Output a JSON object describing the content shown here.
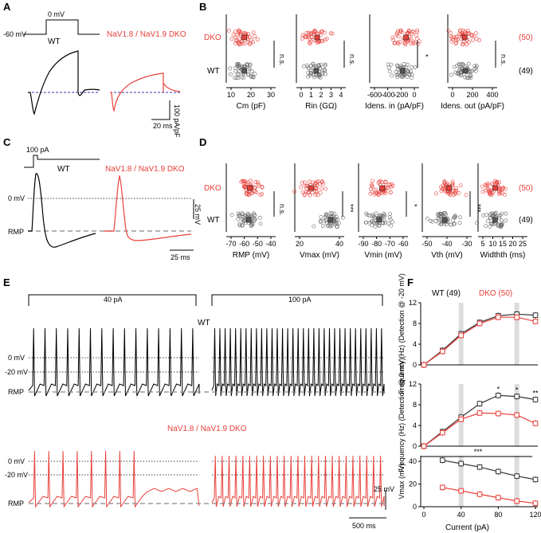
{
  "panels": {
    "A": {
      "label": "A",
      "protocol": {
        "hold": "-60 mV",
        "step": "0 mV"
      },
      "wt_label": "WT",
      "dko_label": "NaV1.8 / NaV1.9 DKO",
      "scale_y": "100 pA/pF",
      "scale_x": "20 ms"
    },
    "B": {
      "label": "B",
      "group_dko": "DKO",
      "group_wt": "WT",
      "n_dko": "(50)",
      "n_wt": "(49)",
      "subplots": [
        {
          "xlabel": "Cm (pF)",
          "ticks": [
            "10",
            "20",
            "30"
          ],
          "sig": "n.s.",
          "wt_mean": 15,
          "dko_mean": 15
        },
        {
          "xlabel": "Rin (GΩ)",
          "ticks": [
            "0",
            "1",
            "2",
            "3",
            "4"
          ],
          "sig": "n.s.",
          "wt_mean": 1.5,
          "dko_mean": 1.6
        },
        {
          "xlabel": "Idens. in (pA/pF)",
          "ticks": [
            "-600",
            "-400",
            "-200",
            "0"
          ],
          "sig": "*",
          "wt_mean": -180,
          "dko_mean": -120
        },
        {
          "xlabel": "Idens. out (pA/pF)",
          "ticks": [
            "0",
            "200",
            "400"
          ],
          "sig": "n.s.",
          "wt_mean": 120,
          "dko_mean": 110
        }
      ]
    },
    "C": {
      "label": "C",
      "stim": "100 pA",
      "wt_label": "WT",
      "dko_label": "NaV1.8 / NaV1.9 DKO",
      "zero_label": "0 mV",
      "rmp_label": "RMP",
      "scale_y": "25 mV",
      "scale_x": "25 ms"
    },
    "D": {
      "label": "D",
      "group_dko": "DKO",
      "group_wt": "WT",
      "n_dko": "(50)",
      "n_wt": "(49)",
      "subplots": [
        {
          "xlabel": "RMP (mV)",
          "ticks": [
            "-70",
            "-60",
            "-50",
            "-40"
          ],
          "sig": "n.s.",
          "wt_mean": -57,
          "dko_mean": -56
        },
        {
          "xlabel": "Vmax (mV)",
          "ticks": [
            "20",
            "40"
          ],
          "sig": "***",
          "wt_mean": 40,
          "dko_mean": 18
        },
        {
          "xlabel": "Vmin (mV)",
          "ticks": [
            "-90",
            "-80",
            "-70",
            "-60"
          ],
          "sig": "*",
          "wt_mean": -80,
          "dko_mean": -77
        },
        {
          "xlabel": "Vth (mV)",
          "ticks": [
            "-50",
            "-40",
            "-30"
          ],
          "sig": "***",
          "wt_mean": -42,
          "dko_mean": -38
        },
        {
          "xlabel": "Widthth (ms)",
          "ticks": [
            "5",
            "10",
            "15",
            "20",
            "25"
          ],
          "sig": "",
          "wt_mean": 10,
          "dko_mean": 10
        }
      ]
    },
    "E": {
      "label": "E",
      "stim_left": "40 pA",
      "stim_right": "100 pA",
      "wt_label": "WT",
      "dko_label": "NaV1.8 / NaV1.9 DKO",
      "lines": [
        "0 mV",
        "-20 mV",
        "RMP"
      ],
      "scale_y": "25 mV",
      "scale_x": "500 ms"
    },
    "F": {
      "label": "F",
      "legend_wt": "WT (49)",
      "legend_dko": "DKO (50)",
      "xlabel": "Current (pA)"
    }
  },
  "chart_data": [
    {
      "type": "line",
      "title": "Frequency (Detection @ -20 mV)",
      "ylabel": "Frequency (Hz) (Detection @ -20 mV)",
      "x": [
        0,
        20,
        40,
        60,
        80,
        100,
        120
      ],
      "ylim": [
        0,
        12
      ],
      "yticks": [
        "0",
        "4",
        "8",
        "12"
      ],
      "series": [
        {
          "name": "WT (49)",
          "values": [
            0,
            2.8,
            6.0,
            8.2,
            9.5,
            9.8,
            9.6
          ],
          "color": "#333333"
        },
        {
          "name": "DKO (50)",
          "values": [
            0,
            2.6,
            5.7,
            8.0,
            9.2,
            9.2,
            8.4
          ],
          "color": "#e8403a"
        }
      ],
      "significance": []
    },
    {
      "type": "line",
      "title": "Frequency (Detection @ 0 mV)",
      "ylabel": "Frequency (Hz) (Detection @ 0 mV)",
      "x": [
        0,
        20,
        40,
        60,
        80,
        100,
        120
      ],
      "ylim": [
        0,
        12
      ],
      "yticks": [
        "0",
        "4",
        "8",
        "12"
      ],
      "series": [
        {
          "name": "WT (49)",
          "values": [
            0,
            2.8,
            5.6,
            8.2,
            9.8,
            9.6,
            9.0
          ],
          "color": "#333333"
        },
        {
          "name": "DKO (50)",
          "values": [
            0,
            2.6,
            5.2,
            6.4,
            6.3,
            6.0,
            4.4
          ],
          "color": "#e8403a"
        }
      ],
      "significance": [
        {
          "x": 80,
          "mark": "*"
        },
        {
          "x": 100,
          "mark": "*"
        },
        {
          "x": 120,
          "mark": "**"
        }
      ]
    },
    {
      "type": "line",
      "title": "Vmax",
      "ylabel": "Vmax (mV)",
      "xlabel": "Current (pA)",
      "x": [
        20,
        40,
        60,
        80,
        100,
        120
      ],
      "xticks": [
        "0",
        "40",
        "80",
        "120"
      ],
      "ylim": [
        0,
        45
      ],
      "yticks": [
        "0",
        "20",
        "40"
      ],
      "series": [
        {
          "name": "WT (49)",
          "values": [
            41,
            38,
            35,
            31,
            27,
            24
          ],
          "color": "#333333"
        },
        {
          "name": "DKO (50)",
          "values": [
            17,
            14,
            11,
            8,
            5,
            3
          ],
          "color": "#e8403a"
        }
      ],
      "significance": [
        {
          "x": 60,
          "mark": "***"
        }
      ]
    }
  ]
}
